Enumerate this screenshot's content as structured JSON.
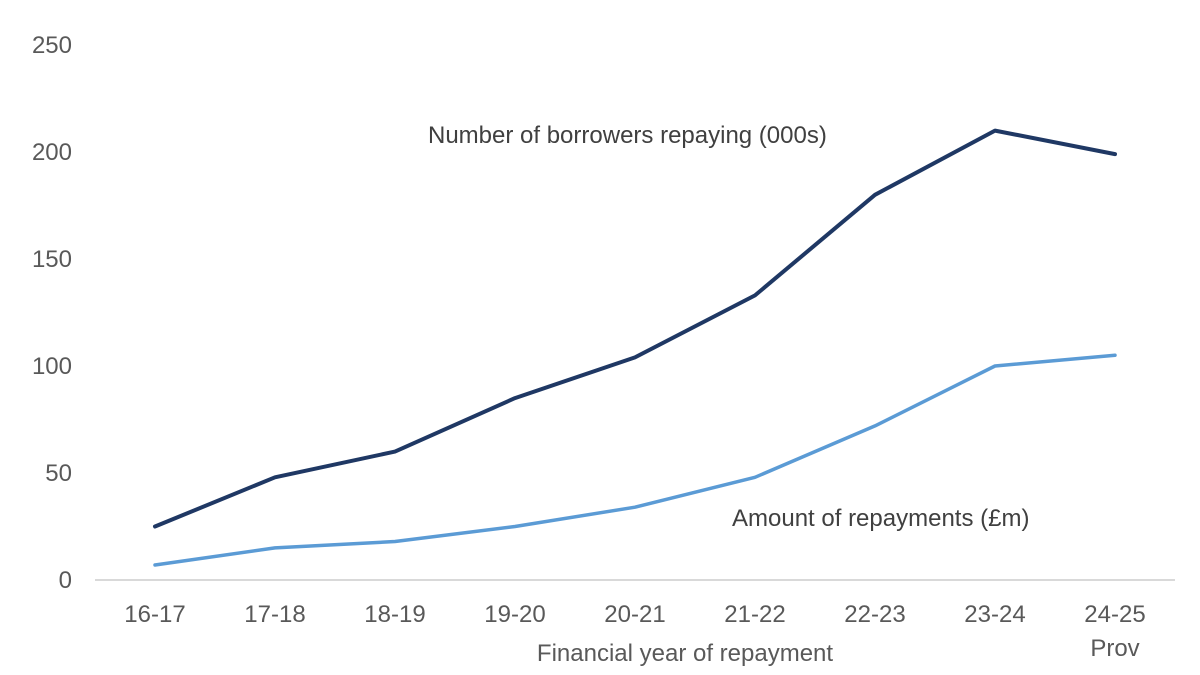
{
  "chart_data": {
    "type": "line",
    "categories": [
      "16-17",
      "17-18",
      "18-19",
      "19-20",
      "20-21",
      "21-22",
      "22-23",
      "23-24",
      "24-25"
    ],
    "category_sublabels": [
      "",
      "",
      "",
      "",
      "",
      "",
      "",
      "",
      "Prov"
    ],
    "series": [
      {
        "name": "Number of borrowers repaying (000s)",
        "color": "#1f3864",
        "values": [
          25,
          48,
          60,
          85,
          104,
          133,
          180,
          210,
          199
        ]
      },
      {
        "name": "Amount of repayments (£m)",
        "color": "#5b9bd5",
        "values": [
          7,
          15,
          18,
          25,
          34,
          48,
          72,
          100,
          105
        ]
      }
    ],
    "title": "",
    "xlabel": "Financial year of repayment",
    "ylabel": "",
    "ylim": [
      0,
      250
    ],
    "yticks": [
      0,
      50,
      100,
      150,
      200,
      250
    ],
    "grid": false,
    "legend": "inline labels"
  }
}
